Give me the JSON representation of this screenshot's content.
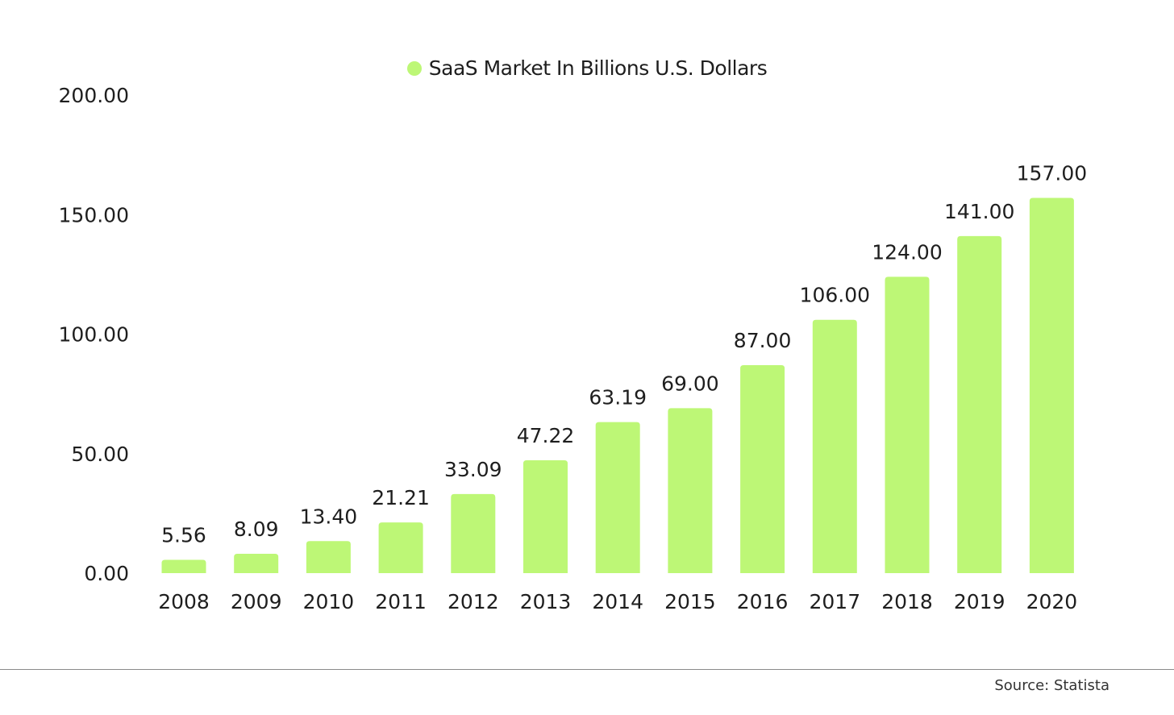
{
  "chart_data": {
    "type": "bar",
    "legend": {
      "label": "SaaS Market In Billions U.S. Dollars",
      "placement": "top-center"
    },
    "categories": [
      "2008",
      "2009",
      "2010",
      "2011",
      "2012",
      "2013",
      "2014",
      "2015",
      "2016",
      "2017",
      "2018",
      "2019",
      "2020"
    ],
    "values": [
      5.56,
      8.09,
      13.4,
      21.21,
      33.09,
      47.22,
      63.19,
      69.0,
      87.0,
      106.0,
      124.0,
      141.0,
      157.0
    ],
    "value_labels": [
      "5.56",
      "8.09",
      "13.40",
      "21.21",
      "33.09",
      "47.22",
      "63.19",
      "69.00",
      "87.00",
      "106.00",
      "124.00",
      "141.00",
      "157.00"
    ],
    "yticks": [
      "0.00",
      "50.00",
      "100.00",
      "150.00",
      "200.00"
    ],
    "ylim": [
      0,
      200
    ],
    "grid": false,
    "bar_color": "#bdf776"
  },
  "footer": {
    "source": "Source: Statista"
  }
}
